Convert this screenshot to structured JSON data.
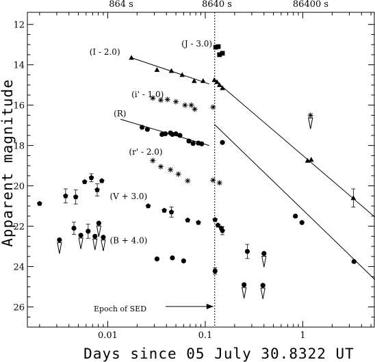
{
  "chart_data": {
    "type": "scatter",
    "title": "",
    "xlabel": "Days since 05 July 30.8322 UT",
    "ylabel": "Apparent magnitude",
    "x_scale": "log",
    "xlim": [
      0.0015,
      5.5
    ],
    "ylim": [
      27,
      11.4
    ],
    "y_inverted": true,
    "x_ticks": [
      0.01,
      0.1,
      1
    ],
    "x_tick_labels": [
      "0.01",
      "0.1",
      "1"
    ],
    "y_ticks": [
      12,
      14,
      16,
      18,
      20,
      22,
      24,
      26
    ],
    "y_tick_labels": [
      "12",
      "14",
      "16",
      "18",
      "20",
      "22",
      "24",
      "26"
    ],
    "top_axis_labels": [
      {
        "text": "864 s",
        "x": 0.01
      },
      {
        "text": "8640 s",
        "x": 0.1
      },
      {
        "text": "86400 s",
        "x": 1
      }
    ],
    "grid": false,
    "reference_line": {
      "x": 0.125,
      "style": "dotted"
    },
    "annotation": {
      "text": "Epoch of SED",
      "arrow_to_x": 0.125,
      "y": 25.98
    },
    "series": [
      {
        "name": "(J - 3.0)",
        "marker": "square",
        "points": [
          {
            "x": 0.128,
            "y": 13.13
          },
          {
            "x": 0.136,
            "y": 13.1
          },
          {
            "x": 0.14,
            "y": 13.5
          },
          {
            "x": 0.15,
            "y": 13.43
          }
        ],
        "upper_limits": []
      },
      {
        "name": "(I - 2.0)",
        "marker": "triangle",
        "points": [
          {
            "x": 0.0175,
            "y": 13.65
          },
          {
            "x": 0.032,
            "y": 14.25
          },
          {
            "x": 0.045,
            "y": 14.3
          },
          {
            "x": 0.058,
            "y": 14.5
          },
          {
            "x": 0.077,
            "y": 14.8
          },
          {
            "x": 0.095,
            "y": 14.8
          },
          {
            "x": 0.124,
            "y": 14.75
          },
          {
            "x": 0.132,
            "y": 14.85
          },
          {
            "x": 0.14,
            "y": 15.0
          },
          {
            "x": 0.15,
            "y": 15.15
          },
          {
            "x": 1.12,
            "y": 18.75
          },
          {
            "x": 1.22,
            "y": 18.7
          },
          {
            "x": 3.3,
            "y": 20.6
          }
        ],
        "upper_limits": [],
        "error_bars": [
          {
            "x": 3.3,
            "y": 20.6,
            "err": 0.45
          }
        ]
      },
      {
        "name": "(i' - 1.0)",
        "marker": "asterisk",
        "points": [
          {
            "x": 0.029,
            "y": 15.65
          },
          {
            "x": 0.035,
            "y": 15.75
          },
          {
            "x": 0.041,
            "y": 15.72
          },
          {
            "x": 0.05,
            "y": 15.83
          },
          {
            "x": 0.062,
            "y": 16.0
          },
          {
            "x": 0.072,
            "y": 16.0
          },
          {
            "x": 0.078,
            "y": 16.2
          },
          {
            "x": 0.12,
            "y": 16.1
          },
          {
            "x": 1.2,
            "y": 16.5
          }
        ],
        "upper_limits": [
          {
            "x": 1.2,
            "y": 16.5
          }
        ]
      },
      {
        "name": "(R)",
        "marker": "circle",
        "points": [
          {
            "x": 0.0225,
            "y": 17.1
          },
          {
            "x": 0.0255,
            "y": 17.2
          },
          {
            "x": 0.036,
            "y": 17.45
          },
          {
            "x": 0.039,
            "y": 17.42
          },
          {
            "x": 0.044,
            "y": 17.38
          },
          {
            "x": 0.046,
            "y": 17.45
          },
          {
            "x": 0.05,
            "y": 17.42
          },
          {
            "x": 0.055,
            "y": 17.5
          },
          {
            "x": 0.068,
            "y": 17.78
          },
          {
            "x": 0.075,
            "y": 17.9
          },
          {
            "x": 0.085,
            "y": 17.88
          },
          {
            "x": 0.092,
            "y": 17.92
          },
          {
            "x": 0.15,
            "y": 17.85
          },
          {
            "x": 0.84,
            "y": 21.5
          },
          {
            "x": 0.98,
            "y": 21.82
          },
          {
            "x": 3.35,
            "y": 23.75
          }
        ],
        "upper_limits": []
      },
      {
        "name": "(r' - 2.0)",
        "marker": "asterisk",
        "points": [
          {
            "x": 0.029,
            "y": 18.75
          },
          {
            "x": 0.035,
            "y": 19.05
          },
          {
            "x": 0.044,
            "y": 19.2
          },
          {
            "x": 0.053,
            "y": 19.42
          },
          {
            "x": 0.066,
            "y": 19.75
          },
          {
            "x": 0.12,
            "y": 19.72
          },
          {
            "x": 0.14,
            "y": 19.85
          }
        ],
        "upper_limits": []
      },
      {
        "name": "(V + 3.0)",
        "marker": "pentagon",
        "points": [
          {
            "x": 0.002,
            "y": 20.88
          },
          {
            "x": 0.0037,
            "y": 20.5
          },
          {
            "x": 0.0047,
            "y": 20.55
          },
          {
            "x": 0.0058,
            "y": 19.8
          },
          {
            "x": 0.0068,
            "y": 19.6
          },
          {
            "x": 0.0078,
            "y": 20.2
          },
          {
            "x": 0.0087,
            "y": 19.75
          },
          {
            "x": 0.026,
            "y": 21.0
          },
          {
            "x": 0.038,
            "y": 21.22
          },
          {
            "x": 0.045,
            "y": 21.3
          },
          {
            "x": 0.066,
            "y": 21.7
          },
          {
            "x": 0.085,
            "y": 21.82
          },
          {
            "x": 0.126,
            "y": 21.68
          },
          {
            "x": 0.135,
            "y": 21.95
          },
          {
            "x": 0.146,
            "y": 22.1
          },
          {
            "x": 0.15,
            "y": 22.22
          }
        ],
        "upper_limits": [],
        "error_bars": [
          {
            "x": 0.0037,
            "y": 20.5,
            "err": 0.35
          },
          {
            "x": 0.0047,
            "y": 20.55,
            "err": 0.35
          },
          {
            "x": 0.0068,
            "y": 19.6,
            "err": 0.2
          },
          {
            "x": 0.0078,
            "y": 20.2,
            "err": 0.3
          },
          {
            "x": 0.045,
            "y": 21.3,
            "err": 0.25
          },
          {
            "x": 0.15,
            "y": 22.22,
            "err": 0.2
          }
        ]
      },
      {
        "name": "(B + 4.0)",
        "marker": "circle",
        "points": [
          {
            "x": 0.0032,
            "y": 22.68
          },
          {
            "x": 0.0045,
            "y": 22.1
          },
          {
            "x": 0.0053,
            "y": 22.45
          },
          {
            "x": 0.0063,
            "y": 22.25
          },
          {
            "x": 0.0074,
            "y": 22.5
          },
          {
            "x": 0.0081,
            "y": 21.85
          },
          {
            "x": 0.009,
            "y": 22.55
          },
          {
            "x": 0.032,
            "y": 23.62
          },
          {
            "x": 0.046,
            "y": 23.57
          },
          {
            "x": 0.06,
            "y": 23.72
          },
          {
            "x": 0.126,
            "y": 24.22
          },
          {
            "x": 0.27,
            "y": 23.25
          },
          {
            "x": 0.25,
            "y": 24.9
          },
          {
            "x": 0.39,
            "y": 24.93
          },
          {
            "x": 0.4,
            "y": 23.35
          }
        ],
        "upper_limits": [
          {
            "x": 0.0032,
            "y": 22.68
          },
          {
            "x": 0.0053,
            "y": 22.45
          },
          {
            "x": 0.0074,
            "y": 22.5
          },
          {
            "x": 0.0081,
            "y": 21.85
          },
          {
            "x": 0.009,
            "y": 22.55
          },
          {
            "x": 0.25,
            "y": 24.9
          },
          {
            "x": 0.39,
            "y": 24.93
          },
          {
            "x": 0.4,
            "y": 23.35
          }
        ],
        "error_bars": [
          {
            "x": 0.0045,
            "y": 22.1,
            "err": 0.3
          },
          {
            "x": 0.0063,
            "y": 22.25,
            "err": 0.35
          },
          {
            "x": 0.126,
            "y": 24.22,
            "err": 0.15
          },
          {
            "x": 0.27,
            "y": 23.25,
            "err": 0.35
          }
        ]
      }
    ],
    "fit_lines": [
      {
        "series": "(I - 2.0)",
        "from": {
          "x": 0.0175,
          "y": 13.65
        },
        "to": {
          "x": 0.11,
          "y": 14.95
        }
      },
      {
        "series": "(I - 2.0)",
        "from": {
          "x": 0.124,
          "y": 14.75
        },
        "to": {
          "x": 5.5,
          "y": 21.55
        }
      },
      {
        "series": "(R)",
        "from": {
          "x": 0.0135,
          "y": 16.7
        },
        "to": {
          "x": 0.11,
          "y": 18.0
        }
      },
      {
        "series": "(R)",
        "from": {
          "x": 0.124,
          "y": 16.95
        },
        "to": {
          "x": 5.5,
          "y": 24.65
        }
      }
    ],
    "series_label_positions": [
      {
        "name": "(J - 3.0)",
        "x": 0.057,
        "y": 13.1
      },
      {
        "name": "(I - 2.0)",
        "x": 0.0065,
        "y": 13.5
      },
      {
        "name": "(i' - 1.0)",
        "x": 0.0175,
        "y": 15.6
      },
      {
        "name": "(R)",
        "x": 0.0115,
        "y": 16.55
      },
      {
        "name": "(r' - 2.0)",
        "x": 0.0165,
        "y": 18.45
      },
      {
        "name": "(V + 3.0)",
        "x": 0.0105,
        "y": 20.65
      },
      {
        "name": "(B + 4.0)",
        "x": 0.0105,
        "y": 22.85
      }
    ]
  }
}
